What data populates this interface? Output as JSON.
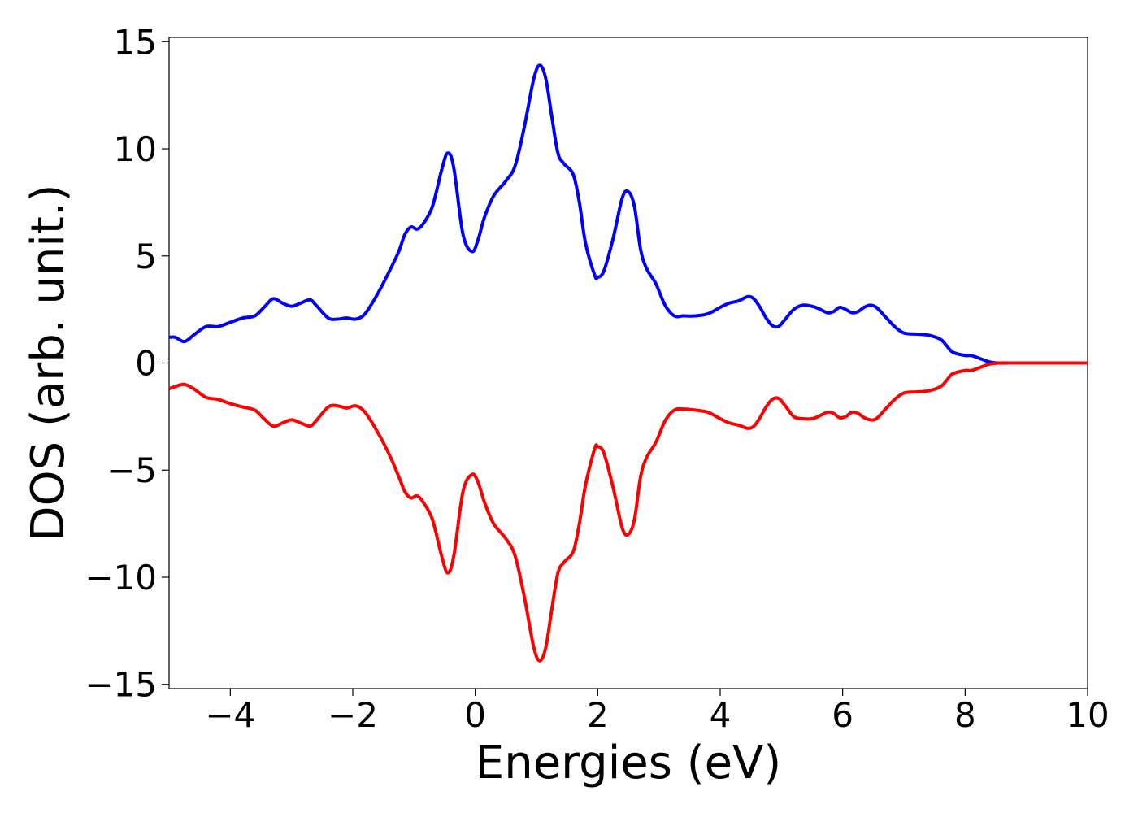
{
  "chart_data": {
    "type": "line",
    "title": "",
    "xlabel": "Energies (eV)",
    "ylabel": "DOS (arb. unit.)",
    "xlim": [
      -5,
      10
    ],
    "ylim": [
      -15.2,
      15.2
    ],
    "xticks": [
      -4,
      -2,
      0,
      2,
      4,
      6,
      8,
      10
    ],
    "xtick_labels": [
      "−4",
      "−2",
      "0",
      "2",
      "4",
      "6",
      "8",
      "10"
    ],
    "yticks": [
      -15,
      -10,
      -5,
      0,
      5,
      10,
      15
    ],
    "ytick_labels": [
      "−15",
      "−10",
      "−5",
      "0",
      "5",
      "10",
      "15"
    ],
    "grid": false,
    "legend": "none",
    "series": [
      {
        "color": "#0000ff",
        "x": [
          -5.0,
          -4.9,
          -4.75,
          -4.6,
          -4.4,
          -4.2,
          -4.0,
          -3.8,
          -3.6,
          -3.45,
          -3.3,
          -3.15,
          -3.0,
          -2.85,
          -2.7,
          -2.6,
          -2.4,
          -2.25,
          -2.1,
          -1.95,
          -1.8,
          -1.6,
          -1.4,
          -1.25,
          -1.15,
          -1.05,
          -0.95,
          -0.85,
          -0.7,
          -0.55,
          -0.45,
          -0.35,
          -0.2,
          -0.05,
          0.05,
          0.15,
          0.3,
          0.5,
          0.65,
          0.8,
          0.95,
          1.05,
          1.15,
          1.25,
          1.35,
          1.45,
          1.6,
          1.7,
          1.8,
          1.95,
          2.0,
          2.1,
          2.25,
          2.4,
          2.5,
          2.6,
          2.7,
          2.8,
          2.95,
          3.1,
          3.25,
          3.4,
          3.6,
          3.8,
          4.0,
          4.15,
          4.3,
          4.45,
          4.55,
          4.65,
          4.75,
          4.85,
          4.95,
          5.05,
          5.2,
          5.35,
          5.5,
          5.6,
          5.75,
          5.85,
          5.95,
          6.05,
          6.15,
          6.25,
          6.35,
          6.45,
          6.55,
          6.7,
          6.85,
          7.0,
          7.2,
          7.4,
          7.6,
          7.7,
          7.8,
          8.0,
          8.1,
          8.25,
          8.4,
          8.55,
          8.8,
          9.0,
          9.5,
          10.0
        ],
        "y": [
          1.2,
          1.2,
          1.0,
          1.3,
          1.7,
          1.7,
          1.9,
          2.1,
          2.2,
          2.6,
          3.0,
          2.8,
          2.65,
          2.8,
          2.95,
          2.7,
          2.1,
          2.05,
          2.1,
          2.05,
          2.3,
          3.2,
          4.3,
          5.2,
          6.0,
          6.35,
          6.25,
          6.5,
          7.3,
          9.0,
          9.8,
          9.1,
          6.0,
          5.2,
          5.8,
          6.8,
          7.8,
          8.5,
          9.2,
          11.0,
          13.2,
          13.9,
          13.3,
          11.5,
          9.8,
          9.3,
          8.8,
          7.5,
          5.6,
          4.1,
          4.0,
          4.3,
          5.8,
          7.7,
          8.0,
          7.3,
          5.3,
          4.4,
          3.7,
          2.7,
          2.2,
          2.2,
          2.2,
          2.3,
          2.6,
          2.8,
          2.9,
          3.1,
          3.0,
          2.6,
          2.1,
          1.75,
          1.7,
          2.0,
          2.5,
          2.7,
          2.65,
          2.55,
          2.35,
          2.4,
          2.6,
          2.5,
          2.35,
          2.4,
          2.6,
          2.7,
          2.6,
          2.15,
          1.7,
          1.4,
          1.35,
          1.3,
          1.1,
          0.8,
          0.5,
          0.35,
          0.35,
          0.2,
          0.05,
          0.0,
          0.0,
          0.0,
          0.0,
          0.0
        ]
      },
      {
        "color": "#ff0000",
        "x": [
          -5.0,
          -4.9,
          -4.75,
          -4.6,
          -4.4,
          -4.2,
          -4.0,
          -3.8,
          -3.6,
          -3.45,
          -3.3,
          -3.15,
          -3.0,
          -2.85,
          -2.7,
          -2.6,
          -2.4,
          -2.25,
          -2.1,
          -1.95,
          -1.8,
          -1.6,
          -1.4,
          -1.25,
          -1.15,
          -1.05,
          -0.95,
          -0.85,
          -0.7,
          -0.55,
          -0.45,
          -0.35,
          -0.2,
          -0.05,
          0.05,
          0.15,
          0.3,
          0.5,
          0.65,
          0.8,
          0.95,
          1.05,
          1.15,
          1.25,
          1.35,
          1.45,
          1.6,
          1.7,
          1.8,
          1.95,
          2.0,
          2.1,
          2.25,
          2.4,
          2.5,
          2.6,
          2.7,
          2.8,
          2.95,
          3.1,
          3.25,
          3.4,
          3.6,
          3.8,
          4.0,
          4.15,
          4.3,
          4.45,
          4.55,
          4.65,
          4.75,
          4.85,
          4.95,
          5.05,
          5.2,
          5.35,
          5.5,
          5.6,
          5.75,
          5.85,
          5.95,
          6.05,
          6.15,
          6.25,
          6.35,
          6.45,
          6.55,
          6.7,
          6.85,
          7.0,
          7.2,
          7.4,
          7.6,
          7.7,
          7.8,
          8.0,
          8.1,
          8.25,
          8.4,
          8.55,
          8.8,
          9.0,
          9.5,
          10.0
        ],
        "y": [
          -1.2,
          -1.1,
          -1.0,
          -1.2,
          -1.6,
          -1.7,
          -1.9,
          -2.05,
          -2.2,
          -2.6,
          -2.95,
          -2.8,
          -2.65,
          -2.8,
          -2.95,
          -2.7,
          -2.05,
          -2.0,
          -2.1,
          -2.0,
          -2.3,
          -3.2,
          -4.3,
          -5.3,
          -6.0,
          -6.3,
          -6.2,
          -6.5,
          -7.3,
          -9.0,
          -9.8,
          -9.0,
          -6.0,
          -5.2,
          -5.6,
          -6.5,
          -7.5,
          -8.2,
          -9.0,
          -10.9,
          -13.2,
          -13.9,
          -13.3,
          -11.5,
          -9.8,
          -9.3,
          -8.8,
          -7.5,
          -5.7,
          -4.0,
          -3.9,
          -4.2,
          -5.8,
          -7.7,
          -8.0,
          -7.3,
          -5.3,
          -4.4,
          -3.7,
          -2.7,
          -2.2,
          -2.15,
          -2.2,
          -2.3,
          -2.6,
          -2.8,
          -2.9,
          -3.05,
          -2.95,
          -2.55,
          -2.05,
          -1.7,
          -1.65,
          -1.95,
          -2.5,
          -2.6,
          -2.6,
          -2.5,
          -2.3,
          -2.35,
          -2.55,
          -2.5,
          -2.3,
          -2.35,
          -2.55,
          -2.65,
          -2.6,
          -2.15,
          -1.7,
          -1.4,
          -1.35,
          -1.3,
          -1.1,
          -0.8,
          -0.5,
          -0.35,
          -0.35,
          -0.2,
          -0.05,
          0.0,
          0.0,
          0.0,
          0.0,
          0.0
        ]
      }
    ]
  }
}
